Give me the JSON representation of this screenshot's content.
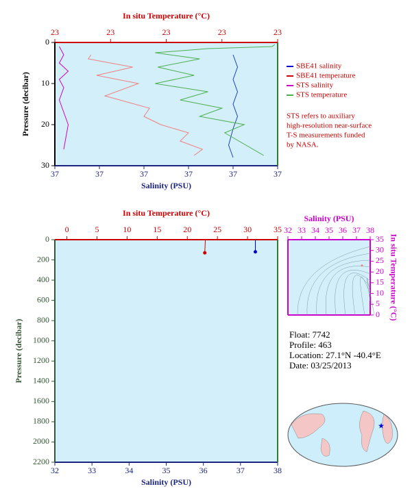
{
  "chart_data": [
    {
      "type": "profile",
      "x_label": "Salinity (PSU)",
      "x2_label": "In situ Temperature (°C)",
      "y_label": "Pressure (decibar)",
      "xlim": [
        36.8,
        37.3
      ],
      "xticks": [
        {
          "value": 36.8,
          "label": "37"
        },
        {
          "value": 36.9,
          "label": "37"
        },
        {
          "value": 37.0,
          "label": "37"
        },
        {
          "value": 37.1,
          "label": "37"
        },
        {
          "value": 37.2,
          "label": "37"
        },
        {
          "value": 37.3,
          "label": "37"
        }
      ],
      "x2lim": [
        22.6,
        23.4
      ],
      "x2ticks": [
        {
          "value": 22.6,
          "label": "23"
        },
        {
          "value": 22.8,
          "label": "23"
        },
        {
          "value": 23.0,
          "label": "23"
        },
        {
          "value": 23.2,
          "label": "23"
        },
        {
          "value": 23.4,
          "label": "23"
        }
      ],
      "ylim": [
        0,
        30
      ],
      "yticks": [
        0,
        10,
        20,
        30
      ],
      "y_inverted": true,
      "x_color": "#1a237e",
      "x2_color": "#cc0000",
      "y_color": "#000000",
      "series": [
        {
          "name": "SBE41 salinity",
          "color": "#2040c0",
          "axis": "x",
          "values": [
            37.2,
            37.21,
            37.2,
            37.21,
            37.2,
            37.21,
            37.2,
            37.19,
            37.2
          ],
          "pressure": [
            3,
            6,
            9,
            12,
            15,
            18,
            21,
            25,
            28
          ]
        },
        {
          "name": "SBE41 temperature",
          "color": "#f08080",
          "axis": "x2",
          "values": [
            22.73,
            22.72,
            22.88,
            22.75,
            22.9,
            22.78,
            22.94,
            22.92,
            22.98,
            23.08,
            23.05,
            23.13,
            23.1
          ],
          "pressure": [
            3,
            4,
            6,
            8,
            10,
            13,
            16,
            18,
            20,
            22,
            24,
            26,
            27.5
          ]
        },
        {
          "name": "STS salinity",
          "color": "#cc00cc",
          "axis": "x",
          "values": [
            36.81,
            36.82,
            36.81,
            36.83,
            36.81,
            36.82,
            36.81,
            36.82,
            36.83,
            36.82
          ],
          "pressure": [
            1,
            3,
            5,
            7,
            9,
            11,
            14,
            17,
            20,
            26
          ]
        },
        {
          "name": "STS temperature",
          "color": "#4caf50",
          "axis": "x2",
          "values": [
            23.39,
            23.38,
            23.15,
            22.96,
            23.12,
            22.97,
            23.1,
            22.96,
            23.15,
            23.05,
            23.2,
            23.12,
            23.28,
            23.21,
            23.35
          ],
          "pressure": [
            0.5,
            1,
            1.5,
            2.5,
            4,
            6,
            8,
            10,
            12,
            14,
            16,
            18,
            20,
            22,
            27.5
          ]
        }
      ],
      "legend_legend_colors": [
        "#0000cc",
        "#cc0000",
        "#cc00cc",
        "#4caf50"
      ],
      "note": [
        "STS refers to auxiliary",
        "high-resolution near-surface",
        "T-S measurements funded",
        "by NASA."
      ]
    },
    {
      "type": "profile",
      "x_label": "Salinity (PSU)",
      "x2_label": "In situ Temperature (°C)",
      "y_label": "Pressure (decibar)",
      "xlim": [
        32,
        38
      ],
      "xticks": [
        32,
        33,
        34,
        35,
        36,
        37,
        38
      ],
      "x2lim": [
        -2,
        35
      ],
      "x2ticks": [
        0,
        5,
        10,
        15,
        20,
        25,
        30,
        35
      ],
      "ylim": [
        0,
        2200
      ],
      "yticks": [
        0,
        200,
        400,
        600,
        800,
        1000,
        1200,
        1400,
        1600,
        1800,
        2000,
        2200
      ],
      "y_inverted": true,
      "x_color": "#1a237e",
      "x2_color": "#cc0000",
      "y_color": "#335533",
      "series": [
        {
          "color": "#cc0000",
          "axis": "x2",
          "values": [
            23,
            22.9
          ],
          "pressure": [
            0,
            130
          ]
        },
        {
          "color": "#0000cc",
          "axis": "x",
          "values": [
            37.4,
            37.4
          ],
          "pressure": [
            0,
            120
          ]
        }
      ]
    },
    {
      "type": "ts",
      "x_label": "Salinity (PSU)",
      "y_label": "In situ Temperature (°C)",
      "xlim": [
        32,
        38
      ],
      "xticks": [
        32,
        33,
        34,
        35,
        36,
        37,
        38
      ],
      "ylim": [
        0,
        35
      ],
      "yticks": [
        0,
        5,
        10,
        15,
        20,
        25,
        30,
        35
      ],
      "x_position": "top",
      "y_position": "right",
      "x_color": "#cc00cc",
      "y_color": "#cc00cc",
      "series": [
        {
          "color": "#f08080",
          "values": [
            23
          ],
          "salinity": [
            37.4
          ]
        }
      ]
    }
  ],
  "info": {
    "lines": [
      "Float:  7742",
      "Profile:  463",
      "Location:  27.1°N  -40.4°E",
      "Date:  03/25/2013"
    ]
  }
}
